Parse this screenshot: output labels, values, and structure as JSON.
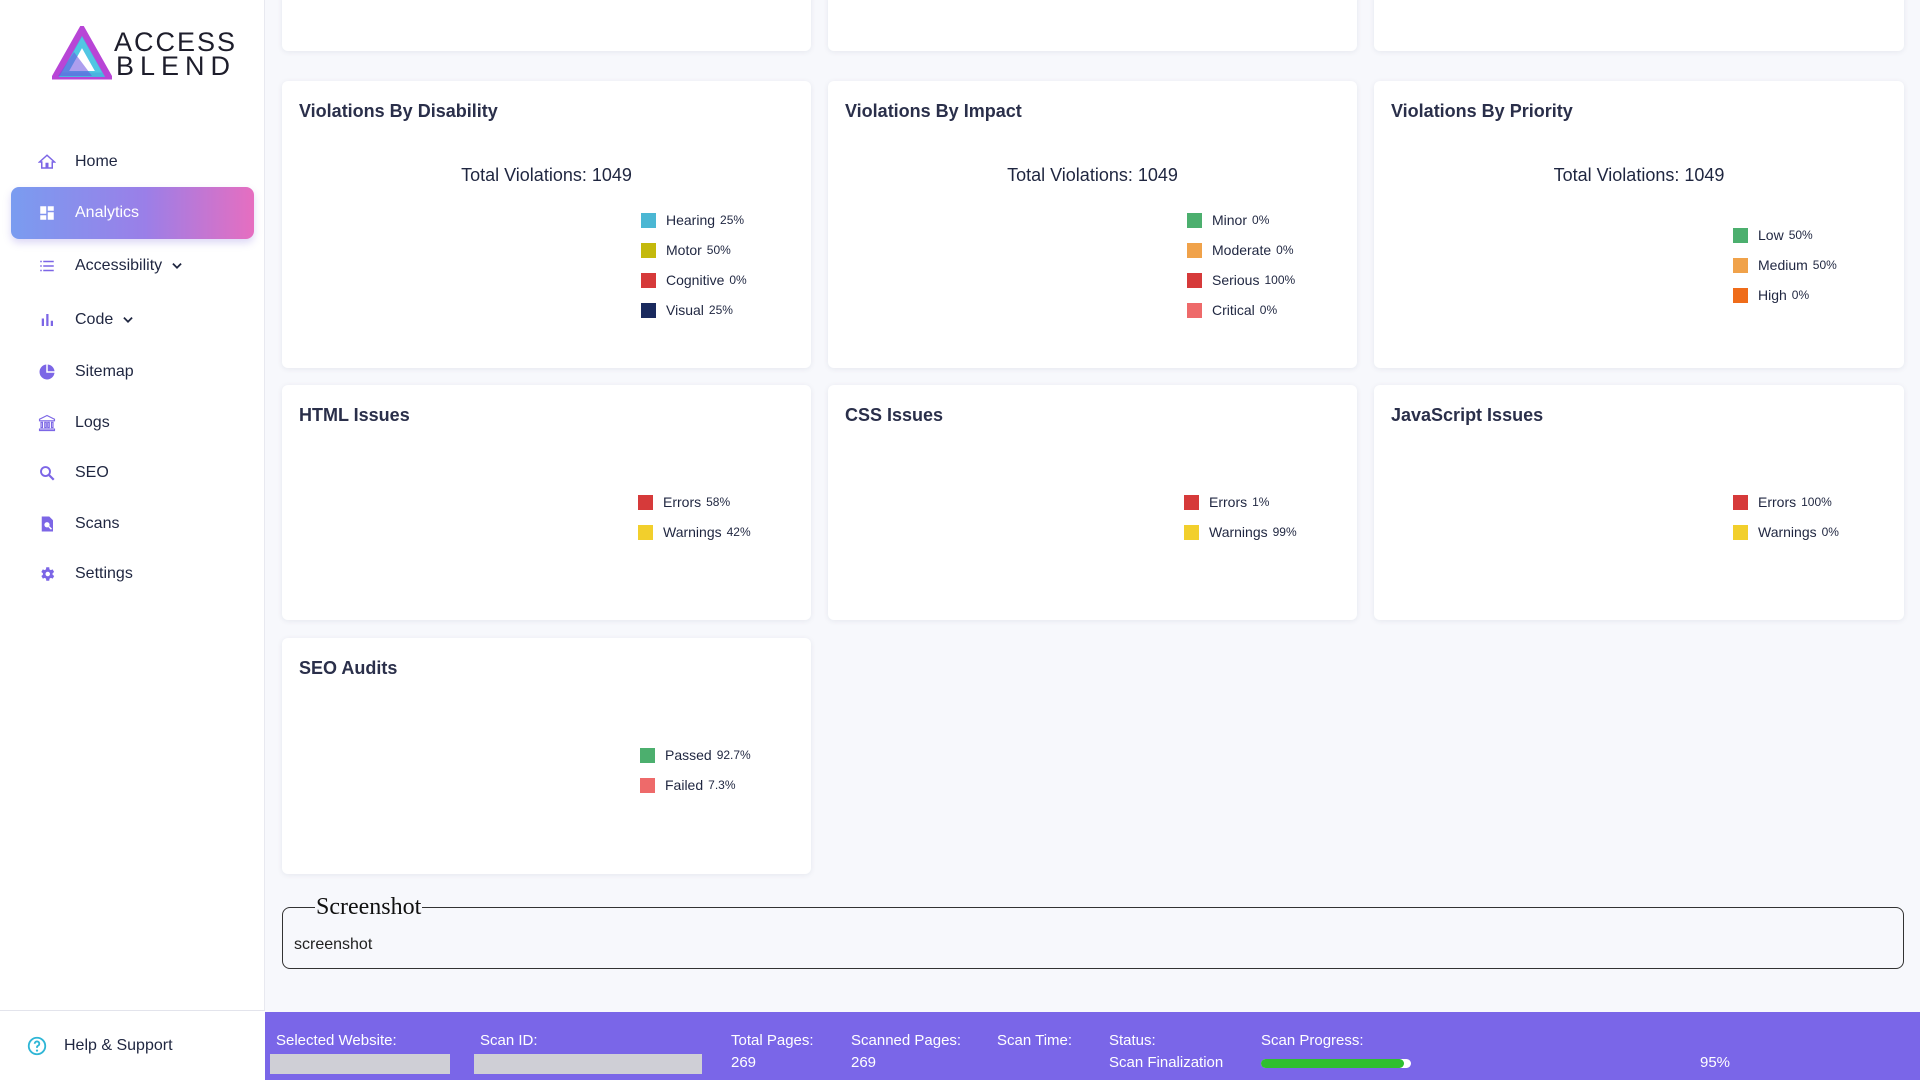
{
  "brand": {
    "line1": "ACCESS",
    "line2": "BLEND"
  },
  "nav": [
    {
      "label": "Home",
      "icon": "home-icon"
    },
    {
      "label": "Analytics",
      "icon": "dashboard-icon",
      "active": true
    },
    {
      "label": "Accessibility",
      "icon": "list-icon",
      "expandable": true
    },
    {
      "label": "Code",
      "icon": "bar-chart-icon",
      "expandable": true
    },
    {
      "label": "Sitemap",
      "icon": "pie-chart-icon"
    },
    {
      "label": "Logs",
      "icon": "bank-icon"
    },
    {
      "label": "SEO",
      "icon": "search-icon"
    },
    {
      "label": "Scans",
      "icon": "scan-document-icon"
    },
    {
      "label": "Settings",
      "icon": "gear-icon"
    }
  ],
  "help": {
    "label": "Help & Support"
  },
  "cards": {
    "disability": {
      "title": "Violations By Disability",
      "total": "Total Violations: 1049",
      "legend": [
        {
          "label": "Hearing",
          "pct": "25%",
          "color": "#4bb7d3"
        },
        {
          "label": "Motor",
          "pct": "50%",
          "color": "#c4b90c"
        },
        {
          "label": "Cognitive",
          "pct": "0%",
          "color": "#d63a3a"
        },
        {
          "label": "Visual",
          "pct": "25%",
          "color": "#1a2a5e"
        }
      ]
    },
    "impact": {
      "title": "Violations By Impact",
      "total": "Total Violations: 1049",
      "legend": [
        {
          "label": "Minor",
          "pct": "0%",
          "color": "#4caf6e"
        },
        {
          "label": "Moderate",
          "pct": "0%",
          "color": "#f0a24a"
        },
        {
          "label": "Serious",
          "pct": "100%",
          "color": "#d63a3a"
        },
        {
          "label": "Critical",
          "pct": "0%",
          "color": "#ee6a6a"
        }
      ]
    },
    "priority": {
      "title": "Violations By Priority",
      "total": "Total Violations: 1049",
      "legend": [
        {
          "label": "Low",
          "pct": "50%",
          "color": "#4caf6e"
        },
        {
          "label": "Medium",
          "pct": "50%",
          "color": "#f0a24a"
        },
        {
          "label": "High",
          "pct": "0%",
          "color": "#ef6c1a"
        }
      ]
    },
    "html": {
      "title": "HTML Issues",
      "legend": [
        {
          "label": "Errors",
          "pct": "58%",
          "color": "#d63a3a"
        },
        {
          "label": "Warnings",
          "pct": "42%",
          "color": "#f2cf2c"
        }
      ]
    },
    "css": {
      "title": "CSS Issues",
      "legend": [
        {
          "label": "Errors",
          "pct": "1%",
          "color": "#d63a3a"
        },
        {
          "label": "Warnings",
          "pct": "99%",
          "color": "#f2cf2c"
        }
      ]
    },
    "js": {
      "title": "JavaScript Issues",
      "legend": [
        {
          "label": "Errors",
          "pct": "100%",
          "color": "#d63a3a"
        },
        {
          "label": "Warnings",
          "pct": "0%",
          "color": "#f2cf2c"
        }
      ]
    },
    "seo": {
      "title": "SEO Audits",
      "legend": [
        {
          "label": "Passed",
          "pct": "92.7%",
          "color": "#4caf6e"
        },
        {
          "label": "Failed",
          "pct": "7.3%",
          "color": "#ee6a6a"
        }
      ]
    }
  },
  "screenshot": {
    "legend": "Screenshot",
    "alt": "screenshot"
  },
  "footer": {
    "selected_website": "Selected Website:",
    "scan_id": "Scan ID:",
    "total_pages_label": "Total Pages:",
    "total_pages": "269",
    "scanned_pages_label": "Scanned Pages:",
    "scanned_pages": "269",
    "scan_time_label": "Scan Time:",
    "status_label": "Status:",
    "status": "Scan Finalization",
    "progress_label": "Scan Progress:",
    "progress_value": 95,
    "progress_text": "95%"
  }
}
